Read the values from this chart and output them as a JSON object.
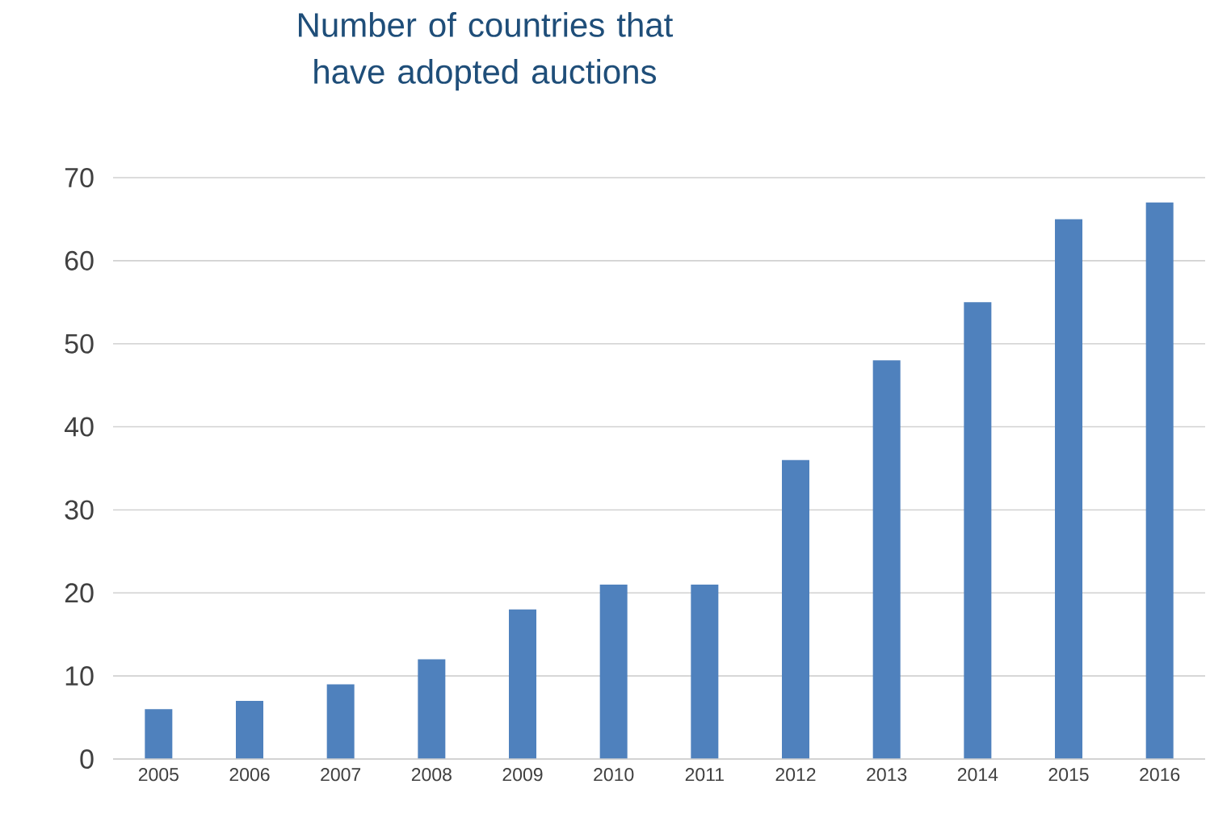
{
  "chart_data": {
    "type": "bar",
    "title": "Number of countries that have adopted auctions",
    "categories": [
      "2005",
      "2006",
      "2007",
      "2008",
      "2009",
      "2010",
      "2011",
      "2012",
      "2013",
      "2014",
      "2015",
      "2016"
    ],
    "values": [
      6,
      7,
      9,
      12,
      18,
      21,
      21,
      36,
      48,
      55,
      65,
      67
    ],
    "color": "#4f81bd",
    "ylim": [
      0,
      70
    ],
    "yticks": [
      0,
      10,
      20,
      30,
      40,
      50,
      60,
      70
    ],
    "grid": "y"
  }
}
